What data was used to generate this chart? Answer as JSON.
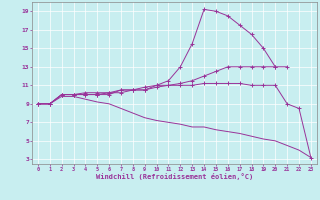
{
  "title": "",
  "xlabel": "Windchill (Refroidissement éolien,°C)",
  "ylabel": "",
  "xlim": [
    -0.5,
    23.5
  ],
  "ylim": [
    2.5,
    20.0
  ],
  "xticks": [
    0,
    1,
    2,
    3,
    4,
    5,
    6,
    7,
    8,
    9,
    10,
    11,
    12,
    13,
    14,
    15,
    16,
    17,
    18,
    19,
    20,
    21,
    22,
    23
  ],
  "yticks": [
    3,
    5,
    7,
    9,
    11,
    13,
    15,
    17,
    19
  ],
  "background_color": "#c8eef0",
  "line_color": "#993399",
  "grid_color": "#ffffff",
  "series": [
    {
      "x": [
        0,
        1,
        2,
        3,
        4,
        5,
        6,
        7,
        8,
        9,
        10,
        11,
        12,
        13,
        14,
        15,
        16,
        17,
        18,
        19,
        20,
        21
      ],
      "y": [
        9.0,
        9.0,
        10.0,
        10.0,
        10.2,
        10.2,
        10.2,
        10.2,
        10.5,
        10.5,
        11.0,
        11.5,
        13.0,
        15.5,
        19.2,
        19.0,
        18.5,
        17.5,
        16.5,
        15.0,
        13.0,
        13.0
      ],
      "marker": true
    },
    {
      "x": [
        0,
        1,
        2,
        3,
        4,
        5,
        6,
        7,
        8,
        9,
        10,
        11,
        12,
        13,
        14,
        15,
        16,
        17,
        18,
        19,
        20
      ],
      "y": [
        9.0,
        9.0,
        10.0,
        10.0,
        10.0,
        10.0,
        10.2,
        10.5,
        10.5,
        10.8,
        11.0,
        11.0,
        11.2,
        11.5,
        12.0,
        12.5,
        13.0,
        13.0,
        13.0,
        13.0,
        13.0
      ],
      "marker": true
    },
    {
      "x": [
        0,
        1,
        2,
        3,
        4,
        5,
        6,
        7,
        8,
        9,
        10,
        11,
        12,
        13,
        14,
        15,
        16,
        17,
        18,
        19,
        20,
        21,
        22,
        23
      ],
      "y": [
        9.0,
        9.0,
        10.0,
        10.0,
        10.0,
        10.0,
        10.0,
        10.5,
        10.5,
        10.5,
        10.8,
        11.0,
        11.0,
        11.0,
        11.2,
        11.2,
        11.2,
        11.2,
        11.0,
        11.0,
        11.0,
        9.0,
        8.5,
        3.2
      ],
      "marker": true
    },
    {
      "x": [
        0,
        1,
        2,
        3,
        4,
        5,
        6,
        7,
        8,
        9,
        10,
        11,
        12,
        13,
        14,
        15,
        16,
        17,
        18,
        19,
        20,
        21,
        22,
        23
      ],
      "y": [
        9.0,
        9.0,
        9.8,
        9.8,
        9.5,
        9.2,
        9.0,
        8.5,
        8.0,
        7.5,
        7.2,
        7.0,
        6.8,
        6.5,
        6.5,
        6.2,
        6.0,
        5.8,
        5.5,
        5.2,
        5.0,
        4.5,
        4.0,
        3.2
      ],
      "marker": false
    }
  ]
}
